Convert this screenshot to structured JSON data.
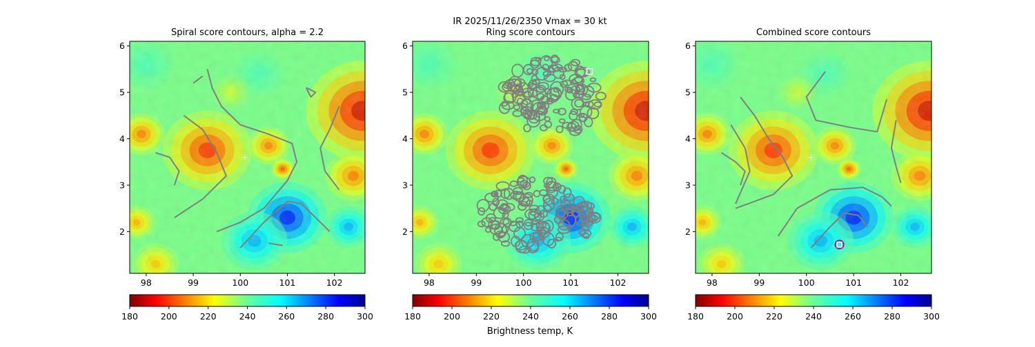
{
  "suptitle": "IR  2025/11/26/2350    Vmax = 30 kt",
  "colorbar_label": "Brightness temp, K",
  "colormap": "jet_r",
  "colors": {
    "contour": "#7f7f7f",
    "marker_ring": "#b000b0",
    "marker_white": "#ffffff"
  },
  "chart_data": [
    {
      "type": "heatmap",
      "title": "Spiral score contours, alpha =  2.2",
      "xlim": [
        97.65,
        102.65
      ],
      "ylim": [
        1.1,
        6.1
      ],
      "xticks": [
        "98",
        "99",
        "100",
        "101",
        "102"
      ],
      "yticks": [
        "2",
        "3",
        "4",
        "5",
        "6"
      ],
      "center_marker": {
        "x": 100.1,
        "y": 3.6
      },
      "contours": [
        [
          [
            98.2,
            3.7
          ],
          [
            98.5,
            3.6
          ],
          [
            98.7,
            3.3
          ],
          [
            98.6,
            3.0
          ]
        ],
        [
          [
            98.8,
            4.5
          ],
          [
            99.2,
            4.2
          ],
          [
            99.5,
            3.7
          ],
          [
            99.7,
            3.2
          ],
          [
            99.2,
            2.7
          ],
          [
            98.6,
            2.3
          ]
        ],
        [
          [
            99.3,
            5.5
          ],
          [
            99.4,
            5.1
          ],
          [
            99.6,
            4.7
          ],
          [
            100.0,
            4.3
          ],
          [
            100.6,
            4.1
          ],
          [
            101.1,
            3.9
          ],
          [
            101.2,
            3.5
          ],
          [
            101.0,
            3.1
          ],
          [
            100.5,
            2.5
          ],
          [
            100.0,
            2.2
          ],
          [
            99.5,
            2.0
          ]
        ],
        [
          [
            99.0,
            5.2
          ],
          [
            99.2,
            5.35
          ]
        ],
        [
          [
            100.0,
            1.65
          ],
          [
            100.5,
            2.2
          ],
          [
            101.0,
            2.65
          ],
          [
            101.3,
            2.6
          ],
          [
            101.6,
            2.3
          ],
          [
            101.9,
            2.0
          ]
        ],
        [
          [
            102.1,
            4.7
          ],
          [
            101.9,
            4.2
          ],
          [
            101.7,
            3.8
          ],
          [
            101.8,
            3.3
          ],
          [
            102.1,
            2.9
          ]
        ],
        [
          [
            101.4,
            5.1
          ],
          [
            101.6,
            5.0
          ],
          [
            101.5,
            4.9
          ],
          [
            101.4,
            5.1
          ]
        ],
        [
          [
            100.6,
            1.75
          ],
          [
            100.9,
            1.7
          ]
        ]
      ]
    },
    {
      "type": "heatmap",
      "title": "Ring score contours",
      "xlim": [
        97.65,
        102.65
      ],
      "ylim": [
        1.1,
        6.1
      ],
      "xticks": [
        "98",
        "99",
        "100",
        "101",
        "102"
      ],
      "yticks": [
        "2",
        "3",
        "4",
        "5",
        "6"
      ],
      "center_marker": null,
      "ring_marker": {
        "x": 101.4,
        "y": 5.45
      },
      "ring_regions": [
        {
          "cx": 100.6,
          "cy": 4.9,
          "rx": 1.05,
          "ry": 0.85
        },
        {
          "cx": 100.3,
          "cy": 2.35,
          "rx": 1.25,
          "ry": 0.8
        }
      ]
    },
    {
      "type": "heatmap",
      "title": "Combined score contours",
      "xlim": [
        97.65,
        102.65
      ],
      "ylim": [
        1.1,
        6.1
      ],
      "xticks": [
        "98",
        "99",
        "100",
        "101",
        "102"
      ],
      "yticks": [
        "2",
        "3",
        "4",
        "5",
        "6"
      ],
      "center_marker": {
        "x": 100.1,
        "y": 3.6
      },
      "best_marker": {
        "x": 100.7,
        "y": 1.72
      },
      "contours": [
        [
          [
            98.2,
            3.7
          ],
          [
            98.5,
            3.5
          ],
          [
            98.7,
            3.3
          ],
          [
            98.6,
            3.0
          ]
        ],
        [
          [
            98.6,
            4.9
          ],
          [
            98.9,
            4.5
          ],
          [
            99.2,
            4.0
          ],
          [
            99.5,
            3.6
          ],
          [
            99.7,
            3.2
          ],
          [
            99.3,
            2.8
          ],
          [
            98.5,
            2.5
          ]
        ],
        [
          [
            98.4,
            4.3
          ],
          [
            98.7,
            3.8
          ],
          [
            98.8,
            3.3
          ],
          [
            98.5,
            2.6
          ]
        ],
        [
          [
            100.4,
            5.45
          ],
          [
            100.0,
            4.9
          ],
          [
            100.2,
            4.4
          ],
          [
            100.9,
            4.25
          ],
          [
            101.5,
            4.15
          ],
          [
            101.6,
            4.5
          ],
          [
            101.7,
            4.85
          ]
        ],
        [
          [
            99.4,
            1.9
          ],
          [
            99.8,
            2.5
          ],
          [
            100.5,
            2.9
          ],
          [
            101.2,
            2.95
          ],
          [
            101.6,
            2.75
          ],
          [
            101.8,
            2.55
          ]
        ],
        [
          [
            100.1,
            1.65
          ],
          [
            100.5,
            2.1
          ],
          [
            100.8,
            2.4
          ],
          [
            101.1,
            2.35
          ],
          [
            101.3,
            2.1
          ]
        ],
        [
          [
            101.9,
            4.4
          ],
          [
            101.8,
            3.8
          ],
          [
            101.9,
            3.4
          ],
          [
            102.0,
            3.05
          ]
        ]
      ]
    }
  ],
  "colorbar": {
    "vmin": 180,
    "vmax": 300,
    "ticks": [
      "180",
      "200",
      "220",
      "240",
      "260",
      "280",
      "300"
    ]
  }
}
